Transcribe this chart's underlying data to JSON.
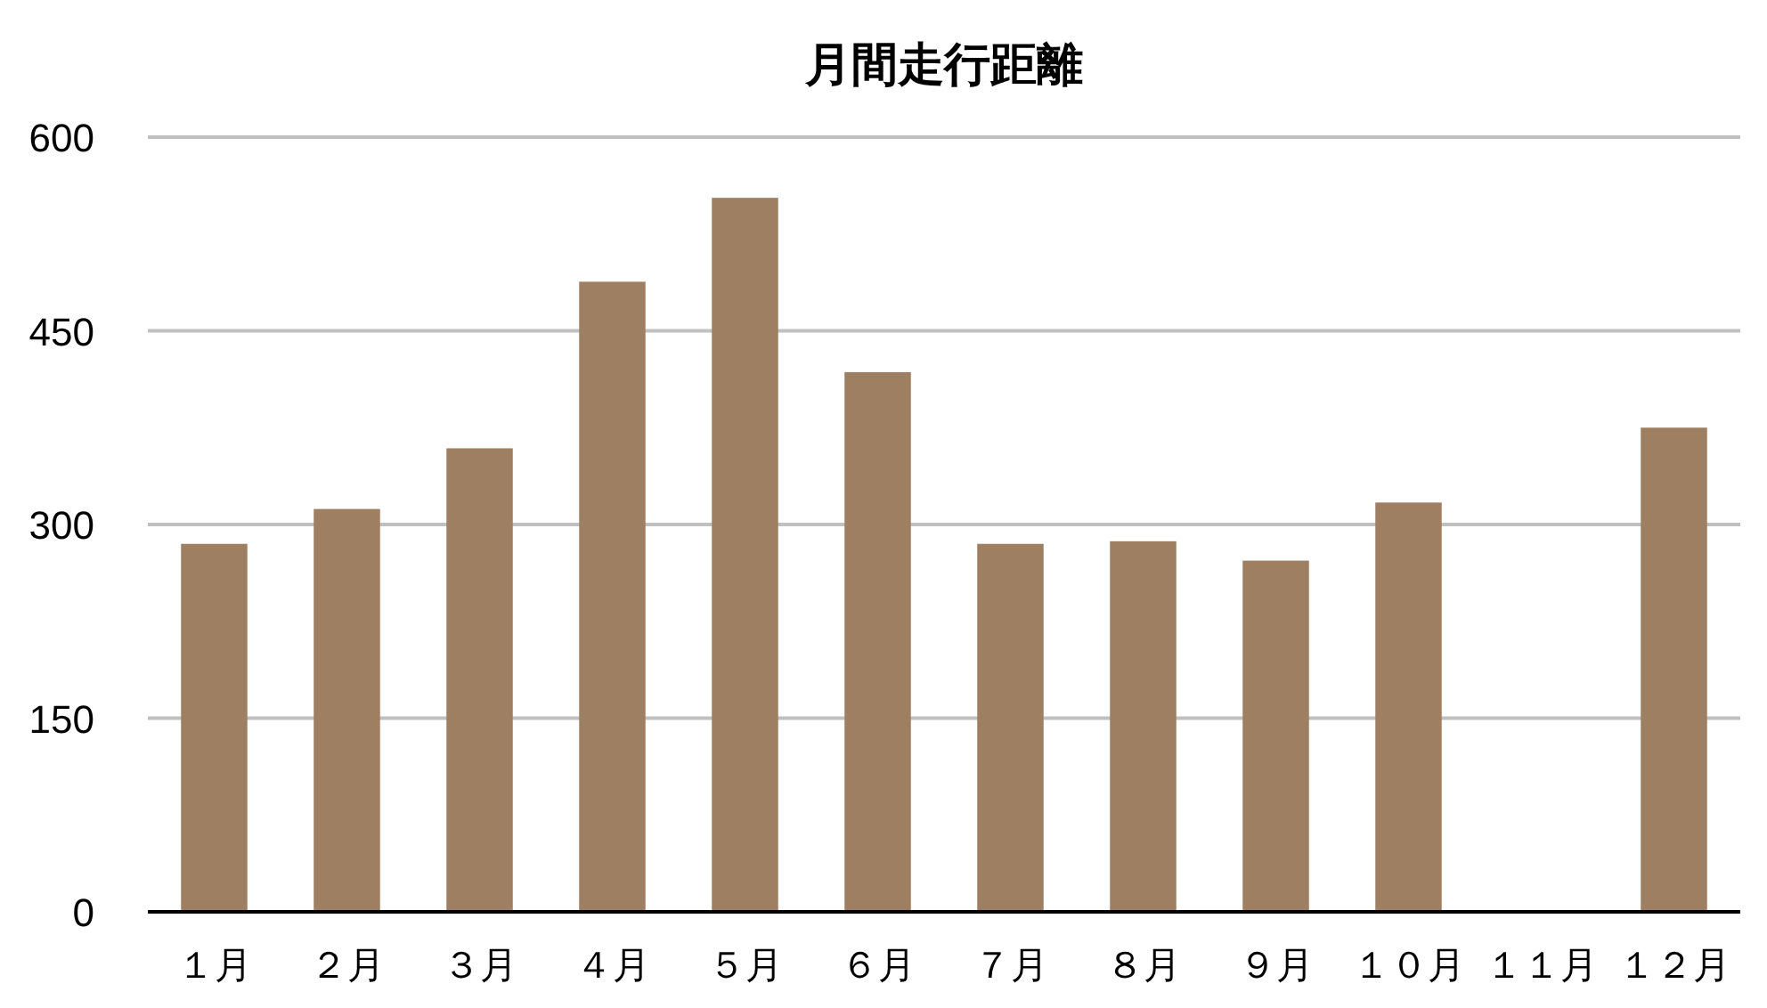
{
  "chart_data": {
    "type": "bar",
    "title": "月間走行距離",
    "categories": [
      "１月",
      "２月",
      "３月",
      "４月",
      "５月",
      "６月",
      "７月",
      "８月",
      "９月",
      "１０月",
      "１１月",
      "１２月"
    ],
    "values": [
      285,
      312,
      359,
      488,
      553,
      418,
      285,
      287,
      272,
      317,
      null,
      375
    ],
    "color": "#9e7f61",
    "ylim": [
      0,
      600
    ],
    "yticks": [
      0,
      150,
      300,
      450,
      600
    ],
    "grid": "y"
  }
}
